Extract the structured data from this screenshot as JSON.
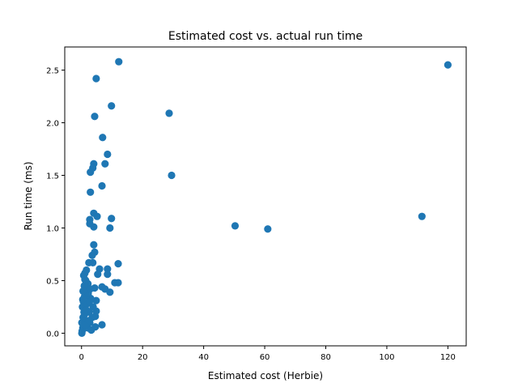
{
  "chart_data": {
    "type": "scatter",
    "title": "Estimated cost vs. actual run time",
    "xlabel": "Estimated cost (Herbie)",
    "ylabel": "Run time (ms)",
    "xlim": [
      -5.5,
      126
    ],
    "ylim": [
      -0.12,
      2.72
    ],
    "xticks": [
      0,
      20,
      40,
      60,
      80,
      100,
      120
    ],
    "xtick_labels": [
      "0",
      "20",
      "40",
      "60",
      "80",
      "100",
      "120"
    ],
    "yticks": [
      0.0,
      0.5,
      1.0,
      1.5,
      2.0,
      2.5
    ],
    "ytick_labels": [
      "0.0",
      "0.5",
      "1.0",
      "1.5",
      "2.0",
      "2.5"
    ],
    "grid": false,
    "color": "#1f77b4",
    "points": [
      [
        12.2,
        2.58
      ],
      [
        4.8,
        2.42
      ],
      [
        9.8,
        2.16
      ],
      [
        4.3,
        2.06
      ],
      [
        6.9,
        1.86
      ],
      [
        8.5,
        1.7
      ],
      [
        7.7,
        1.61
      ],
      [
        4.0,
        1.61
      ],
      [
        3.7,
        1.57
      ],
      [
        2.9,
        1.53
      ],
      [
        6.7,
        1.4
      ],
      [
        2.9,
        1.34
      ],
      [
        4.0,
        1.14
      ],
      [
        5.1,
        1.11
      ],
      [
        2.7,
        1.08
      ],
      [
        9.8,
        1.09
      ],
      [
        2.7,
        1.04
      ],
      [
        4.0,
        1.01
      ],
      [
        9.3,
        1.0
      ],
      [
        4.0,
        0.84
      ],
      [
        4.3,
        0.77
      ],
      [
        3.5,
        0.74
      ],
      [
        12.0,
        0.66
      ],
      [
        2.4,
        0.67
      ],
      [
        3.7,
        0.67
      ],
      [
        5.9,
        0.61
      ],
      [
        8.5,
        0.61
      ],
      [
        1.6,
        0.6
      ],
      [
        8.5,
        0.56
      ],
      [
        5.3,
        0.56
      ],
      [
        1.1,
        0.57
      ],
      [
        10.9,
        0.48
      ],
      [
        12.0,
        0.48
      ],
      [
        7.7,
        0.42
      ],
      [
        9.3,
        0.39
      ],
      [
        6.7,
        0.44
      ],
      [
        4.3,
        0.43
      ],
      [
        2.1,
        0.47
      ],
      [
        1.1,
        0.51
      ],
      [
        4.8,
        0.31
      ],
      [
        4.8,
        0.21
      ],
      [
        4.5,
        0.16
      ],
      [
        6.7,
        0.08
      ],
      [
        4.5,
        0.06
      ],
      [
        2.7,
        0.1
      ],
      [
        28.7,
        2.09
      ],
      [
        29.5,
        1.5
      ],
      [
        50.3,
        1.02
      ],
      [
        61.0,
        0.99
      ],
      [
        111.5,
        1.11
      ],
      [
        120.0,
        2.55
      ],
      [
        0.2,
        0.02
      ],
      [
        0.4,
        0.05
      ],
      [
        0.1,
        0.1
      ],
      [
        0.5,
        0.15
      ],
      [
        0.8,
        0.2
      ],
      [
        0.3,
        0.25
      ],
      [
        0.6,
        0.3
      ],
      [
        1.0,
        0.35
      ],
      [
        1.3,
        0.4
      ],
      [
        0.9,
        0.45
      ],
      [
        1.5,
        0.12
      ],
      [
        2.0,
        0.05
      ],
      [
        2.5,
        0.2
      ],
      [
        1.8,
        0.28
      ],
      [
        3.0,
        0.33
      ],
      [
        2.2,
        0.38
      ],
      [
        3.5,
        0.15
      ],
      [
        1.2,
        0.08
      ],
      [
        0.7,
        0.55
      ],
      [
        1.6,
        0.22
      ],
      [
        2.8,
        0.42
      ],
      [
        3.2,
        0.03
      ],
      [
        0.4,
        0.32
      ],
      [
        1.0,
        0.18
      ],
      [
        2.4,
        0.12
      ],
      [
        3.8,
        0.25
      ],
      [
        0.1,
        0.0
      ],
      [
        0.5,
        0.4
      ],
      [
        1.4,
        0.5
      ],
      [
        2.6,
        0.3
      ]
    ]
  }
}
